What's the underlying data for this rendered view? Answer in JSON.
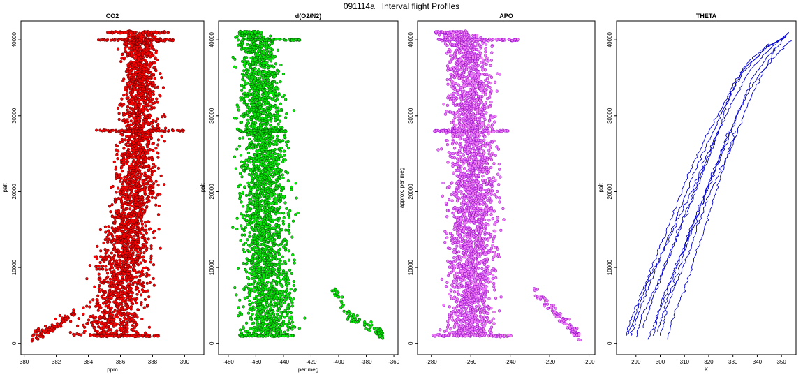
{
  "figure": {
    "title": "091114a   Interval flight Profiles"
  },
  "chart_data": [
    {
      "id": "co2",
      "type": "scatter",
      "title": "CO2",
      "xlabel": "ppm",
      "ylabel": "palt",
      "xlim": [
        379.8,
        391.2
      ],
      "ylim": [
        -1500,
        42500
      ],
      "xticks": [
        380,
        382,
        384,
        386,
        388,
        390
      ],
      "yticks": [
        0,
        10000,
        20000,
        30000,
        40000
      ],
      "colors": {
        "fill": "#ff0000",
        "edge": "#5a0000"
      },
      "profile": {
        "alt": [
          1000,
          3000,
          5000,
          8000,
          11000,
          14000,
          17000,
          20000,
          23000,
          26000,
          28000,
          31000,
          34000,
          37000,
          40000,
          41000
        ],
        "center": [
          385.2,
          385.5,
          385.8,
          386.0,
          386.2,
          386.5,
          386.7,
          386.9,
          387.0,
          387.1,
          387.2,
          387.2,
          387.3,
          387.3,
          387.2,
          387.2
        ],
        "spread": [
          1.6,
          1.5,
          1.4,
          1.3,
          1.2,
          1.1,
          1.05,
          1.0,
          1.0,
          0.95,
          0.9,
          0.85,
          0.8,
          0.8,
          0.9,
          0.7
        ]
      },
      "bands": [
        {
          "alt": 41000,
          "x": [
            385.2,
            389.0
          ]
        },
        {
          "alt": 40000,
          "x": [
            384.5,
            389.3
          ]
        },
        {
          "alt": 28000,
          "x": [
            384.3,
            390.0
          ]
        },
        {
          "alt": 1000,
          "x": [
            384.0,
            388.5
          ]
        }
      ],
      "tail": {
        "x": [
          380.5,
          381.8,
          383.2
        ],
        "alt": [
          900,
          2000,
          4200
        ]
      }
    },
    {
      "id": "o2n2",
      "type": "scatter",
      "title": "d(O2/N2)",
      "xlabel": "per meg",
      "ylabel": "palt",
      "xlim": [
        -487,
        -357
      ],
      "ylim": [
        -1500,
        42500
      ],
      "xticks": [
        -480,
        -460,
        -440,
        -420,
        -400,
        -380,
        -360
      ],
      "yticks": [
        0,
        10000,
        20000,
        30000,
        40000
      ],
      "colors": {
        "fill": "#00ee00",
        "edge": "#0a4a0a"
      },
      "profile": {
        "alt": [
          1000,
          5000,
          10000,
          15000,
          20000,
          25000,
          28000,
          32000,
          36000,
          40000,
          41000
        ],
        "center": [
          -450,
          -451,
          -452,
          -453,
          -453,
          -454,
          -455,
          -456,
          -457,
          -460,
          -466
        ],
        "spread": [
          14,
          14,
          13,
          13,
          13,
          13,
          12,
          12,
          12,
          12,
          7
        ]
      },
      "bands": [
        {
          "alt": 41000,
          "x": [
            -472,
            -458
          ]
        },
        {
          "alt": 40000,
          "x": [
            -466,
            -428
          ]
        },
        {
          "alt": 28000,
          "x": [
            -472,
            -438
          ]
        },
        {
          "alt": 1000,
          "x": [
            -472,
            -432
          ]
        }
      ],
      "tail": {
        "x": [
          -405,
          -392,
          -372,
          -368
        ],
        "alt": [
          7500,
          3500,
          1800,
          900
        ]
      }
    },
    {
      "id": "apo",
      "type": "scatter",
      "title": "APO",
      "xlabel": "",
      "ylabel": "approx. per meg",
      "xlim": [
        -287,
        -197
      ],
      "ylim": [
        -1500,
        42500
      ],
      "xticks": [
        -280,
        -260,
        -240,
        -220,
        -200
      ],
      "yticks": [
        0,
        10000,
        20000,
        30000,
        40000
      ],
      "colors": {
        "fill": "#ee82ee",
        "edge": "#9400d3"
      },
      "profile": {
        "alt": [
          1000,
          5000,
          10000,
          15000,
          20000,
          25000,
          28000,
          32000,
          36000,
          40000,
          41000
        ],
        "center": [
          -260,
          -260,
          -259,
          -259,
          -259,
          -259,
          -260,
          -260,
          -261,
          -262,
          -270
        ],
        "spread": [
          9,
          9,
          9,
          9,
          9,
          9,
          9,
          9,
          9,
          9,
          6
        ]
      },
      "bands": [
        {
          "alt": 41000,
          "x": [
            -278,
            -262
          ]
        },
        {
          "alt": 40000,
          "x": [
            -277,
            -236
          ]
        },
        {
          "alt": 28000,
          "x": [
            -279,
            -241
          ]
        },
        {
          "alt": 1000,
          "x": [
            -280,
            -238
          ]
        }
      ],
      "tail": {
        "x": [
          -228,
          -218,
          -210,
          -205
        ],
        "alt": [
          7000,
          4500,
          2200,
          1000
        ]
      }
    },
    {
      "id": "theta",
      "type": "line",
      "title": "THETA",
      "xlabel": "K",
      "ylabel": "palt",
      "xlim": [
        282,
        356
      ],
      "ylim": [
        -1500,
        42500
      ],
      "xticks": [
        290,
        300,
        310,
        320,
        330,
        340,
        350
      ],
      "yticks": [
        0,
        10000,
        20000,
        30000,
        40000
      ],
      "colors": {
        "line": "#0000cd"
      },
      "series": [
        {
          "alt": [
            1000,
            4000,
            8000,
            12000,
            16000,
            20000,
            24000,
            28000,
            32000,
            36000,
            39000,
            40000
          ],
          "x": [
            286,
            289,
            294,
            299,
            304,
            309,
            314,
            320,
            327,
            335,
            343,
            350
          ]
        },
        {
          "alt": [
            1000,
            4000,
            8000,
            12000,
            16000,
            20000,
            24000,
            28000,
            32000,
            36000,
            39000,
            40500
          ],
          "x": [
            288,
            291,
            296,
            301,
            306,
            311,
            316,
            322,
            328,
            334,
            344,
            352
          ]
        },
        {
          "alt": [
            800,
            4000,
            8000,
            12000,
            16000,
            20000,
            24000,
            28000,
            32000,
            36000,
            39000,
            41000
          ],
          "x": [
            290,
            293,
            299,
            304,
            309,
            314,
            319,
            324,
            330,
            337,
            346,
            353
          ]
        },
        {
          "alt": [
            500,
            3000,
            7000,
            11000,
            15000,
            19000,
            23000,
            27000,
            31000,
            35000,
            38000,
            40000
          ],
          "x": [
            295,
            298,
            303,
            308,
            313,
            318,
            323,
            328,
            333,
            340,
            348,
            354
          ]
        },
        {
          "alt": [
            1000,
            5000,
            9000,
            13000,
            17000,
            21000,
            25000,
            28000,
            31000,
            35000,
            39000
          ],
          "x": [
            297,
            300,
            305,
            310,
            315,
            320,
            325,
            329,
            333,
            338,
            347
          ]
        },
        {
          "alt": [
            1000,
            5000,
            9000,
            13000,
            17000,
            21000,
            25000,
            28000
          ],
          "x": [
            300,
            303,
            308,
            313,
            317,
            322,
            328,
            331
          ]
        },
        {
          "alt": [
            500,
            4000,
            8000,
            12000,
            16000,
            20000,
            24000,
            28000,
            33000,
            38000,
            41000
          ],
          "x": [
            303,
            306,
            311,
            315,
            319,
            323,
            327,
            332,
            338,
            346,
            353
          ]
        },
        {
          "alt": [
            1500,
            5000,
            9000,
            13000,
            17000,
            21000,
            25000,
            28000
          ],
          "x": [
            299,
            302,
            307,
            311,
            316,
            320,
            325,
            328
          ]
        },
        {
          "alt": [
            2000,
            6000,
            10000,
            14000,
            18000,
            22000,
            26000,
            30000,
            34000,
            37000,
            39500
          ],
          "x": [
            293,
            297,
            302,
            307,
            312,
            317,
            322,
            326,
            330,
            336,
            345
          ]
        },
        {
          "alt": [
            1200,
            5000,
            9000,
            12000,
            16000,
            20000,
            24000,
            28000
          ],
          "x": [
            287,
            291,
            296,
            301,
            307,
            313,
            318,
            324
          ]
        }
      ],
      "shelf": {
        "alt": 28000,
        "x": [
          320,
          333
        ]
      }
    }
  ]
}
